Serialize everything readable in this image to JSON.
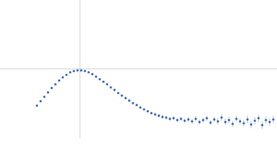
{
  "chart_data": {
    "type": "scatter",
    "color": "#3561bd",
    "error_color": "#a9bce4",
    "xlim": [
      0,
      6
    ],
    "ylim": [
      0,
      2.2
    ],
    "crosshair": {
      "x": 1.732,
      "y": 1.104
    },
    "crosshair_color": "#d0d0d0",
    "x": [
      0.8,
      0.88,
      0.96,
      1.04,
      1.12,
      1.2,
      1.28,
      1.36,
      1.44,
      1.52,
      1.6,
      1.68,
      1.76,
      1.84,
      1.92,
      2.0,
      2.08,
      2.16,
      2.24,
      2.32,
      2.4,
      2.48,
      2.56,
      2.64,
      2.72,
      2.8,
      2.88,
      2.96,
      3.04,
      3.12,
      3.2,
      3.28,
      3.36,
      3.44,
      3.52,
      3.6,
      3.68,
      3.76,
      3.84,
      3.92,
      4.0,
      4.08,
      4.16,
      4.24,
      4.32,
      4.4,
      4.48,
      4.56,
      4.64,
      4.72,
      4.8,
      4.88,
      4.96,
      5.04,
      5.12,
      5.2,
      5.28,
      5.36,
      5.44,
      5.52,
      5.6,
      5.68,
      5.76,
      5.84,
      5.92
    ],
    "values": [
      0.52,
      0.59,
      0.66,
      0.73,
      0.8,
      0.86,
      0.92,
      0.97,
      1.01,
      1.05,
      1.07,
      1.08,
      1.08,
      1.07,
      1.05,
      1.02,
      0.98,
      0.94,
      0.9,
      0.86,
      0.81,
      0.77,
      0.72,
      0.68,
      0.64,
      0.6,
      0.56,
      0.53,
      0.49,
      0.46,
      0.43,
      0.4,
      0.38,
      0.36,
      0.34,
      0.33,
      0.31,
      0.32,
      0.29,
      0.31,
      0.28,
      0.3,
      0.27,
      0.31,
      0.26,
      0.29,
      0.32,
      0.25,
      0.3,
      0.27,
      0.33,
      0.26,
      0.29,
      0.23,
      0.31,
      0.27,
      0.24,
      0.3,
      0.22,
      0.28,
      0.32,
      0.21,
      0.29,
      0.26,
      0.3
    ],
    "errors": [
      0.01,
      0.01,
      0.01,
      0.01,
      0.01,
      0.01,
      0.01,
      0.01,
      0.01,
      0.01,
      0.01,
      0.01,
      0.01,
      0.01,
      0.01,
      0.01,
      0.01,
      0.01,
      0.01,
      0.01,
      0.01,
      0.01,
      0.01,
      0.02,
      0.02,
      0.02,
      0.02,
      0.02,
      0.02,
      0.02,
      0.02,
      0.02,
      0.03,
      0.03,
      0.03,
      0.03,
      0.03,
      0.03,
      0.03,
      0.03,
      0.03,
      0.04,
      0.04,
      0.04,
      0.04,
      0.04,
      0.04,
      0.04,
      0.04,
      0.05,
      0.05,
      0.05,
      0.05,
      0.05,
      0.05,
      0.05,
      0.05,
      0.06,
      0.06,
      0.06,
      0.06,
      0.06,
      0.06,
      0.06,
      0.06
    ]
  }
}
